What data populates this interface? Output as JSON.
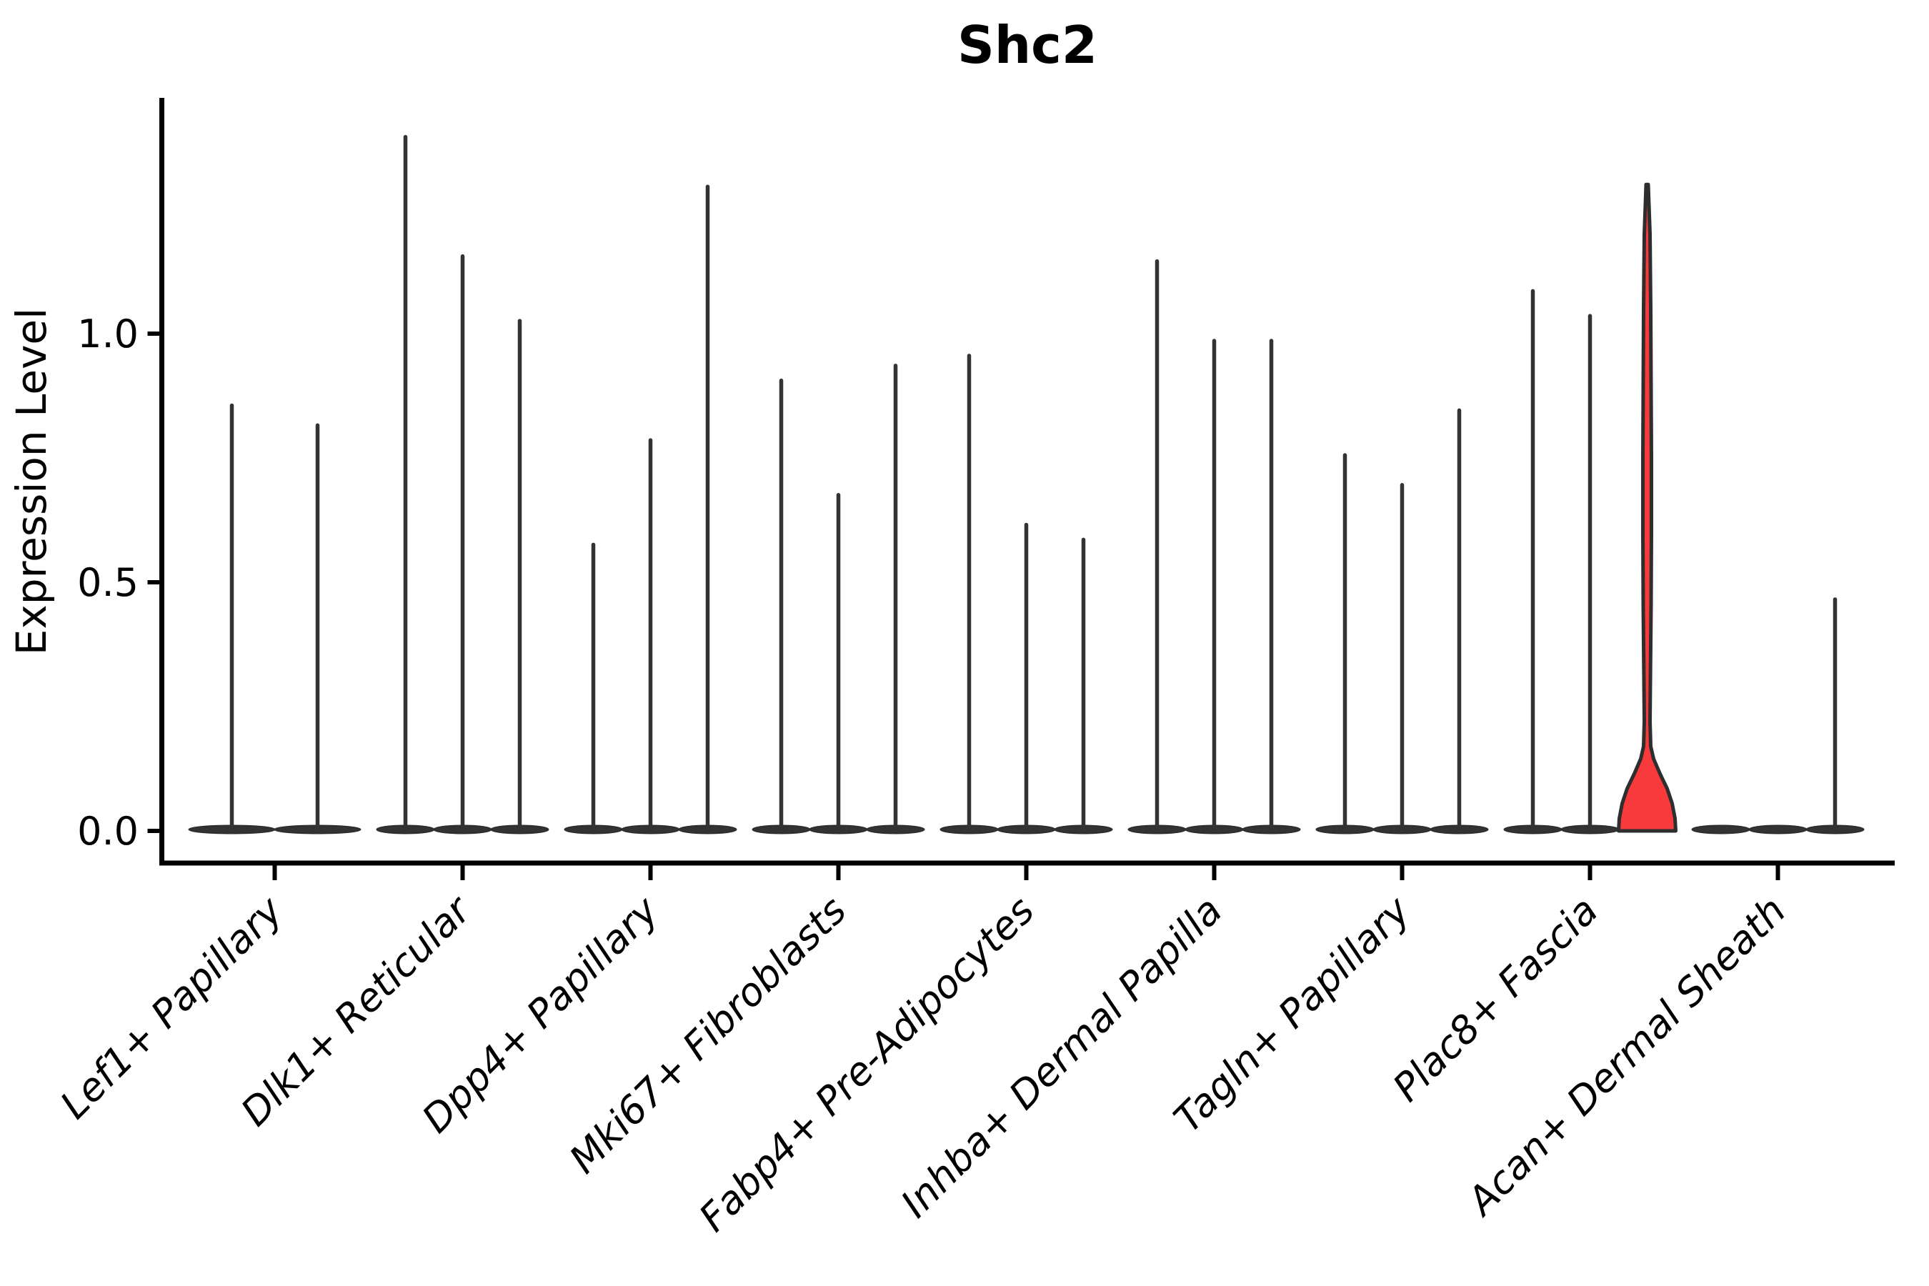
{
  "chart_data": {
    "type": "violin",
    "title": "Shc2",
    "ylabel": "Expression Level",
    "xlabel": "",
    "ylim": [
      -0.065,
      1.475
    ],
    "grid": false,
    "legend": "none",
    "yticks": [
      {
        "value": 0.0,
        "label": "0.0"
      },
      {
        "value": 0.5,
        "label": "0.5"
      },
      {
        "value": 1.0,
        "label": "1.0"
      }
    ],
    "colors": {
      "violin_fill": "#333333",
      "violin_edge": "#2e2e2e",
      "highlight_fill": "#f93a3c",
      "axis_color": "#000000"
    },
    "categories": [
      "Lef1+ Papillary",
      "Dlk1+ Reticular",
      "Dpp4+ Papillary",
      "Mki67+ Fibroblasts",
      "Fabp4+ Pre-Adipocytes",
      "Inhba+ Dermal Papilla",
      "Tagln+ Papillary",
      "Plac8+ Fascia",
      "Acan+ Dermal Sheath"
    ],
    "groups": [
      {
        "category": "Lef1+ Papillary",
        "violins": [
          {
            "max": 0.86
          },
          {
            "max": 0.82
          }
        ]
      },
      {
        "category": "Dlk1+ Reticular",
        "violins": [
          {
            "max": 1.4
          },
          {
            "max": 1.16
          },
          {
            "max": 1.03
          }
        ]
      },
      {
        "category": "Dpp4+ Papillary",
        "violins": [
          {
            "max": 0.58
          },
          {
            "max": 0.79
          },
          {
            "max": 1.3
          }
        ]
      },
      {
        "category": "Mki67+ Fibroblasts",
        "violins": [
          {
            "max": 0.91
          },
          {
            "max": 0.68
          },
          {
            "max": 0.94
          }
        ]
      },
      {
        "category": "Fabp4+ Pre-Adipocytes",
        "violins": [
          {
            "max": 0.96
          },
          {
            "max": 0.62
          },
          {
            "max": 0.59
          }
        ]
      },
      {
        "category": "Inhba+ Dermal Papilla",
        "violins": [
          {
            "max": 1.15
          },
          {
            "max": 0.99
          },
          {
            "max": 0.99
          }
        ]
      },
      {
        "category": "Tagln+ Papillary",
        "violins": [
          {
            "max": 0.76
          },
          {
            "max": 0.7
          },
          {
            "max": 0.85
          }
        ]
      },
      {
        "category": "Plac8+ Fascia",
        "violins": [
          {
            "max": 1.09
          },
          {
            "max": 1.04
          },
          {
            "max": 1.3,
            "highlight": true,
            "base_bulge": true
          }
        ]
      },
      {
        "category": "Acan+ Dermal Sheath",
        "violins": [
          {
            "max": 0.0
          },
          {
            "max": 0.0
          },
          {
            "max": 0.47
          }
        ]
      }
    ]
  }
}
